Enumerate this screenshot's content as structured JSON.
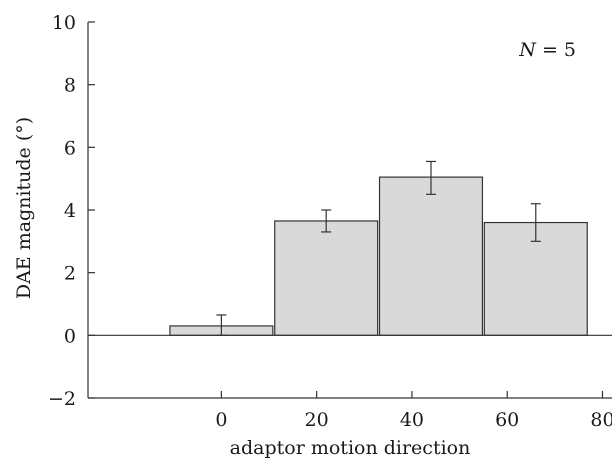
{
  "chart_data": {
    "type": "bar",
    "categories": [
      "0",
      "20",
      "40",
      "60"
    ],
    "x": [
      0,
      22,
      44,
      66
    ],
    "values": [
      0.3,
      3.65,
      5.05,
      3.6
    ],
    "error_bars": {
      "lower": [
        0.0,
        3.3,
        4.5,
        3.0
      ],
      "upper": [
        0.65,
        4.0,
        5.55,
        4.2
      ]
    },
    "xlabel": "adaptor motion direction",
    "ylabel": "DAE magnitude (°)",
    "xlim": [
      -28,
      82
    ],
    "ylim": [
      -2,
      10
    ],
    "x_ticks": [
      0,
      20,
      40,
      60,
      80
    ],
    "y_ticks": [
      -2,
      0,
      2,
      4,
      6,
      8,
      10
    ],
    "grid": false,
    "bar_color": "#d9d9d9",
    "annotation": {
      "prefix": "N",
      "text": " = 5"
    }
  }
}
